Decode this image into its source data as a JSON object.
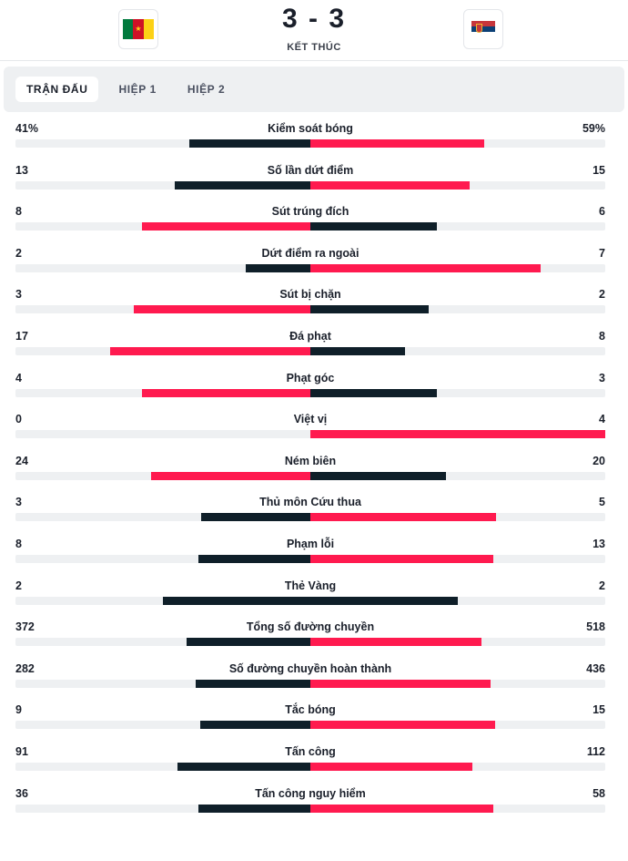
{
  "colors": {
    "leading": "#ff1a4f",
    "trailing": "#0f1f29"
  },
  "header": {
    "score": "3 - 3",
    "status": "KẾT THÚC",
    "home_flag_icon": "cameroon-flag-icon",
    "away_flag_icon": "serbia-flag-icon"
  },
  "tabs": [
    "TRẬN ĐẤU",
    "HIỆP 1",
    "HIỆP 2"
  ],
  "stats": [
    {
      "name": "Kiểm soát bóng",
      "home": "41%",
      "away": "59%",
      "home_share": 0.41,
      "away_share": 0.59,
      "leader": "away"
    },
    {
      "name": "Số lần dứt điểm",
      "home": "13",
      "away": "15",
      "home_share": 0.46,
      "away_share": 0.54,
      "leader": "away"
    },
    {
      "name": "Sút trúng đích",
      "home": "8",
      "away": "6",
      "home_share": 0.57,
      "away_share": 0.43,
      "leader": "home"
    },
    {
      "name": "Dứt điểm ra ngoài",
      "home": "2",
      "away": "7",
      "home_share": 0.22,
      "away_share": 0.78,
      "leader": "away"
    },
    {
      "name": "Sút bị chặn",
      "home": "3",
      "away": "2",
      "home_share": 0.6,
      "away_share": 0.4,
      "leader": "home"
    },
    {
      "name": "Đá phạt",
      "home": "17",
      "away": "8",
      "home_share": 0.68,
      "away_share": 0.32,
      "leader": "home"
    },
    {
      "name": "Phạt góc",
      "home": "4",
      "away": "3",
      "home_share": 0.57,
      "away_share": 0.43,
      "leader": "home"
    },
    {
      "name": "Việt vị",
      "home": "0",
      "away": "4",
      "home_share": 0.0,
      "away_share": 1.0,
      "leader": "away"
    },
    {
      "name": "Ném biên",
      "home": "24",
      "away": "20",
      "home_share": 0.54,
      "away_share": 0.46,
      "leader": "home"
    },
    {
      "name": "Thủ môn Cứu thua",
      "home": "3",
      "away": "5",
      "home_share": 0.37,
      "away_share": 0.63,
      "leader": "away"
    },
    {
      "name": "Phạm lỗi",
      "home": "8",
      "away": "13",
      "home_share": 0.38,
      "away_share": 0.62,
      "leader": "away"
    },
    {
      "name": "Thẻ Vàng",
      "home": "2",
      "away": "2",
      "home_share": 0.5,
      "away_share": 0.5,
      "leader": "none"
    },
    {
      "name": "Tổng số đường chuyền",
      "home": "372",
      "away": "518",
      "home_share": 0.42,
      "away_share": 0.58,
      "leader": "away"
    },
    {
      "name": "Số đường chuyền hoàn thành",
      "home": "282",
      "away": "436",
      "home_share": 0.39,
      "away_share": 0.61,
      "leader": "away"
    },
    {
      "name": "Tắc bóng",
      "home": "9",
      "away": "15",
      "home_share": 0.375,
      "away_share": 0.625,
      "leader": "away"
    },
    {
      "name": "Tấn công",
      "home": "91",
      "away": "112",
      "home_share": 0.45,
      "away_share": 0.55,
      "leader": "away"
    },
    {
      "name": "Tấn công nguy hiểm",
      "home": "36",
      "away": "58",
      "home_share": 0.38,
      "away_share": 0.62,
      "leader": "away"
    }
  ]
}
